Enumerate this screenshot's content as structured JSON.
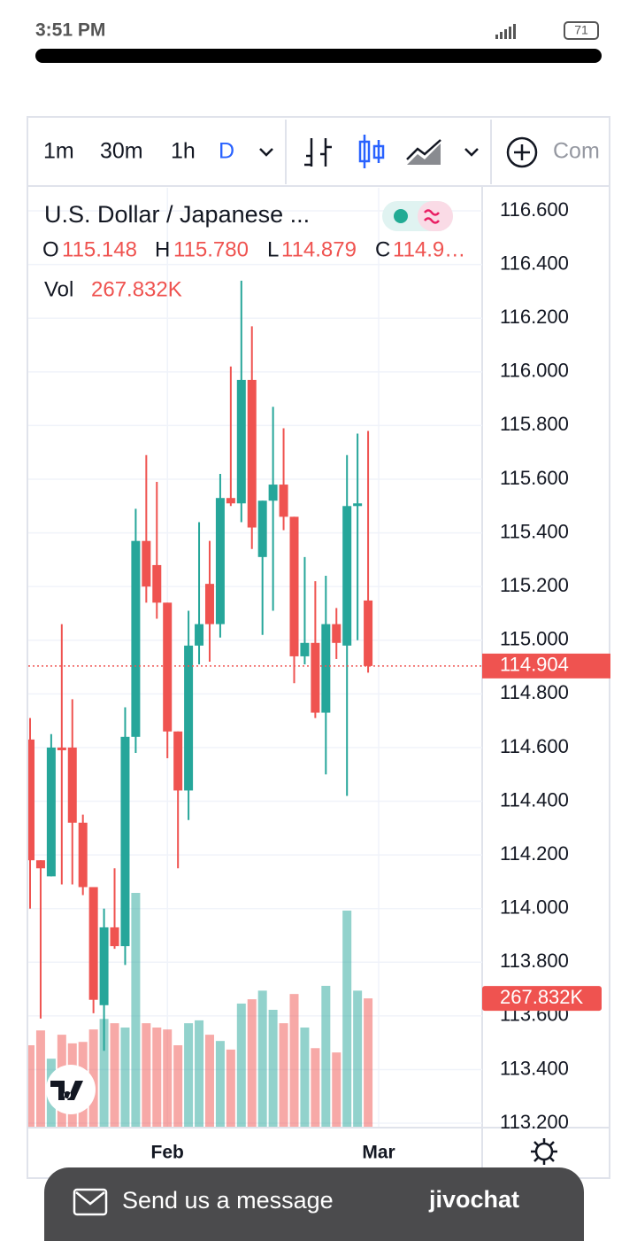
{
  "status_bar": {
    "time": "3:51 PM",
    "battery": "71"
  },
  "toolbar": {
    "intervals": [
      "1m",
      "30m",
      "1h",
      "D"
    ],
    "compare": "Com"
  },
  "chart_data": {
    "type": "candlestick",
    "title": "U.S. Dollar / Japanese ...",
    "ohlc_legend": [
      {
        "label": "O",
        "value": "115.148"
      },
      {
        "label": "H",
        "value": "115.780"
      },
      {
        "label": "L",
        "value": "114.879"
      },
      {
        "label": "C",
        "value": "114.9…"
      }
    ],
    "volume_title": "Vol",
    "volume_last_label": "267.832K",
    "open": [
      114.63,
      114.18,
      114.12,
      114.6,
      114.6,
      114.32,
      114.08,
      113.64,
      113.93,
      113.86,
      114.64,
      115.37,
      115.28,
      115.14,
      114.66,
      114.44,
      114.98,
      115.21,
      115.06,
      115.53,
      115.51,
      115.97,
      115.31,
      115.52,
      115.58,
      115.46,
      114.94,
      114.99,
      114.73,
      115.06,
      114.98,
      115.5,
      115.148
    ],
    "high": [
      114.71,
      114.18,
      114.65,
      115.06,
      114.78,
      114.35,
      114.08,
      114.0,
      114.15,
      114.75,
      115.49,
      115.69,
      115.59,
      115.14,
      114.66,
      115.11,
      115.44,
      115.37,
      115.62,
      116.02,
      116.34,
      116.17,
      115.52,
      115.87,
      115.79,
      115.46,
      115.31,
      115.22,
      115.24,
      115.12,
      115.69,
      115.77,
      115.78
    ],
    "low": [
      114.0,
      113.59,
      114.12,
      114.09,
      114.09,
      114.05,
      113.61,
      113.47,
      113.85,
      113.79,
      114.58,
      115.14,
      115.08,
      114.56,
      114.15,
      114.33,
      114.91,
      114.92,
      115.01,
      115.5,
      115.44,
      115.34,
      115.02,
      115.11,
      115.41,
      114.84,
      114.91,
      114.71,
      114.5,
      114.93,
      114.42,
      115.0,
      114.879
    ],
    "close": [
      114.18,
      114.15,
      114.6,
      114.59,
      114.32,
      114.08,
      113.66,
      113.93,
      113.86,
      114.64,
      115.37,
      115.2,
      115.14,
      114.66,
      114.44,
      114.98,
      115.06,
      115.06,
      115.53,
      115.51,
      115.97,
      115.42,
      115.52,
      115.58,
      115.46,
      114.94,
      114.99,
      114.73,
      115.06,
      114.99,
      115.5,
      115.51,
      114.904
    ],
    "volume": [
      170000,
      201000,
      142000,
      192000,
      174000,
      177000,
      203000,
      225000,
      216000,
      207000,
      488000,
      216000,
      207000,
      203000,
      170000,
      216000,
      222000,
      192000,
      179000,
      161000,
      257000,
      266000,
      284000,
      244000,
      216000,
      277000,
      207000,
      164000,
      294000,
      155000,
      451000,
      284000,
      267832
    ],
    "up_color": "#26a69a",
    "down_color": "#ef5350",
    "xticks": [
      {
        "value": 13,
        "label": "Feb"
      },
      {
        "value": 33,
        "label": "Mar"
      }
    ],
    "ylim": [
      113.187,
      116.686
    ],
    "yticks": [
      {
        "value": 113.2,
        "label": "113.200"
      },
      {
        "value": 113.4,
        "label": "113.400"
      },
      {
        "value": 113.6,
        "label": "113.600"
      },
      {
        "value": 113.8,
        "label": "113.800"
      },
      {
        "value": 114.0,
        "label": "114.000"
      },
      {
        "value": 114.2,
        "label": "114.200"
      },
      {
        "value": 114.4,
        "label": "114.400"
      },
      {
        "value": 114.6,
        "label": "114.600"
      },
      {
        "value": 114.8,
        "label": "114.800"
      },
      {
        "value": 115.0,
        "label": "115.000"
      },
      {
        "value": 115.2,
        "label": "115.200"
      },
      {
        "value": 115.4,
        "label": "115.400"
      },
      {
        "value": 115.6,
        "label": "115.600"
      },
      {
        "value": 115.8,
        "label": "115.800"
      },
      {
        "value": 116.0,
        "label": "116.000"
      },
      {
        "value": 116.2,
        "label": "116.200"
      },
      {
        "value": 116.4,
        "label": "116.400"
      },
      {
        "value": 116.6,
        "label": "116.600"
      }
    ],
    "last_price": 114.904,
    "grid": true
  },
  "footer": {
    "message": "Send us a message",
    "brand": "jivochat"
  }
}
